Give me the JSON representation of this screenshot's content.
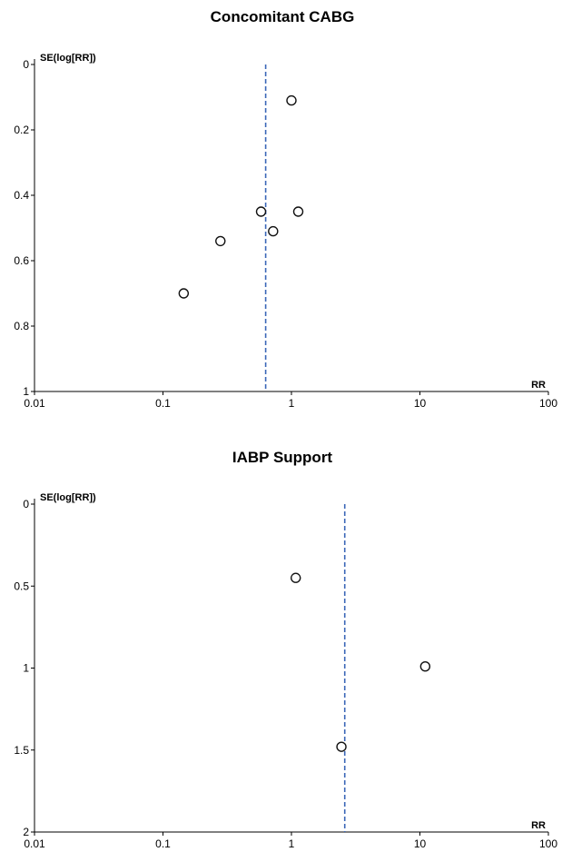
{
  "chart_data": [
    {
      "type": "scatter",
      "title": "Concomitant CABG",
      "xlabel": "RR",
      "ylabel": "SE(log[RR])",
      "x_scale": "log",
      "y_inverted": true,
      "xlim": [
        0.01,
        100
      ],
      "ylim": [
        0,
        1
      ],
      "x_ticks": [
        0.01,
        0.1,
        1,
        10,
        100
      ],
      "x_tick_labels": [
        "0.01",
        "0.1",
        "1",
        "10",
        "100"
      ],
      "y_ticks": [
        0,
        0.2,
        0.4,
        0.6,
        0.8,
        1
      ],
      "y_tick_labels": [
        "0",
        "0.2",
        "0.4",
        "0.6",
        "0.8",
        "1"
      ],
      "grid": false,
      "reference_line_x": 0.63,
      "points": [
        {
          "x": 1.0,
          "y": 0.11
        },
        {
          "x": 0.58,
          "y": 0.45
        },
        {
          "x": 1.13,
          "y": 0.45
        },
        {
          "x": 0.72,
          "y": 0.51
        },
        {
          "x": 0.28,
          "y": 0.54
        },
        {
          "x": 0.145,
          "y": 0.7
        }
      ],
      "colors": {
        "reference_line": "#3b67b8",
        "point_stroke": "#111111",
        "point_fill": "#ffffff"
      }
    },
    {
      "type": "scatter",
      "title": "IABP Support",
      "xlabel": "RR",
      "ylabel": "SE(log[RR])",
      "x_scale": "log",
      "y_inverted": true,
      "xlim": [
        0.01,
        100
      ],
      "ylim": [
        0,
        2
      ],
      "x_ticks": [
        0.01,
        0.1,
        1,
        10,
        100
      ],
      "x_tick_labels": [
        "0.01",
        "0.1",
        "1",
        "10",
        "100"
      ],
      "y_ticks": [
        0,
        0.5,
        1,
        1.5,
        2
      ],
      "y_tick_labels": [
        "0",
        "0.5",
        "1",
        "1.5",
        "2"
      ],
      "grid": false,
      "reference_line_x": 2.6,
      "points": [
        {
          "x": 1.08,
          "y": 0.45
        },
        {
          "x": 11.0,
          "y": 0.99
        },
        {
          "x": 2.45,
          "y": 1.48
        }
      ],
      "colors": {
        "reference_line": "#3b67b8",
        "point_stroke": "#111111",
        "point_fill": "#ffffff"
      }
    }
  ]
}
